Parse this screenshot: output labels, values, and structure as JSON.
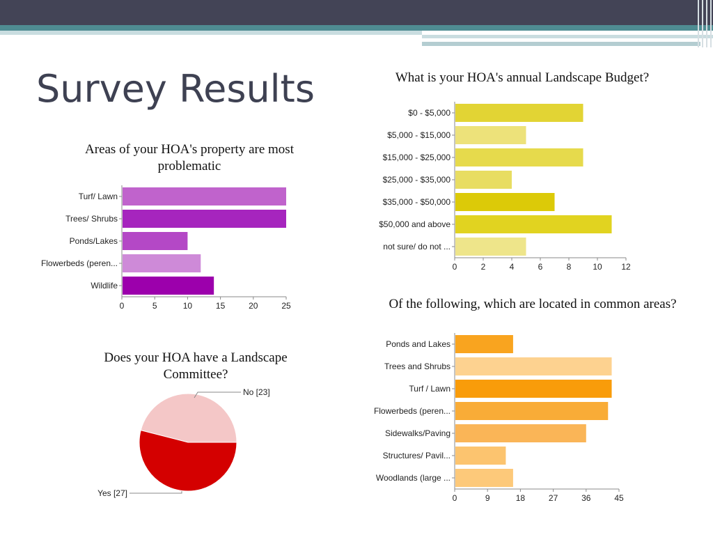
{
  "slide": {
    "title": "Survey Results"
  },
  "colors": {
    "top_band": "#434456",
    "teal_band": "#4f8c92",
    "title_text": "#3e4152"
  },
  "chart_data": [
    {
      "id": "problematic",
      "type": "bar",
      "orientation": "horizontal",
      "title": "Areas of your HOA's property are most problematic",
      "categories": [
        "Turf/ Lawn",
        "Trees/ Shrubs",
        "Ponds/Lakes",
        "Flowerbeds (peren...",
        "Wildlife"
      ],
      "values": [
        25,
        25,
        10,
        12,
        14
      ],
      "colors": [
        "#c063cc",
        "#a625be",
        "#b448c6",
        "#ce8ad8",
        "#9c00ac"
      ],
      "xlim": [
        0,
        25
      ],
      "ticks": [
        0,
        5,
        10,
        15,
        20,
        25
      ],
      "grid": false
    },
    {
      "id": "budget",
      "type": "bar",
      "orientation": "horizontal",
      "title": "What is your HOA's annual Landscape Budget?",
      "categories": [
        "$0 - $5,000",
        "$5,000 - $15,000",
        "$15,000 - $25,000",
        "$25,000 - $35,000",
        "$35,000 - $50,000",
        "$50,000 and above",
        "not sure/ do not ..."
      ],
      "values": [
        9,
        5,
        9,
        4,
        7,
        11,
        5
      ],
      "colors": [
        "#e2d434",
        "#ede27a",
        "#e6da4c",
        "#e8dd62",
        "#dcca08",
        "#e1d320",
        "#eee58a"
      ],
      "xlim": [
        0,
        12
      ],
      "ticks": [
        0,
        2,
        4,
        6,
        8,
        10,
        12
      ],
      "grid": false
    },
    {
      "id": "committee",
      "type": "pie",
      "title": "Does your HOA have a Landscape Committee?",
      "slices": [
        {
          "label": "No [23]",
          "value": 23,
          "color": "#f4c7c7"
        },
        {
          "label": "Yes [27]",
          "value": 27,
          "color": "#d40000"
        }
      ]
    },
    {
      "id": "common_areas",
      "type": "bar",
      "orientation": "horizontal",
      "title": "Of the following, which are located in common areas?",
      "categories": [
        "Ponds and Lakes",
        "Trees and Shrubs",
        "Turf / Lawn",
        "Flowerbeds (peren...",
        "Sidewalks/Paving",
        "Structures/ Pavil...",
        "Woodlands (large ..."
      ],
      "values": [
        16,
        43,
        43,
        42,
        36,
        14,
        16
      ],
      "colors": [
        "#f9a41f",
        "#fdd290",
        "#f99c0a",
        "#f9ac37",
        "#fab557",
        "#fcc46f",
        "#fdc97a"
      ],
      "xlim": [
        0,
        45
      ],
      "ticks": [
        0,
        9,
        18,
        27,
        36,
        45
      ],
      "grid": false
    }
  ]
}
